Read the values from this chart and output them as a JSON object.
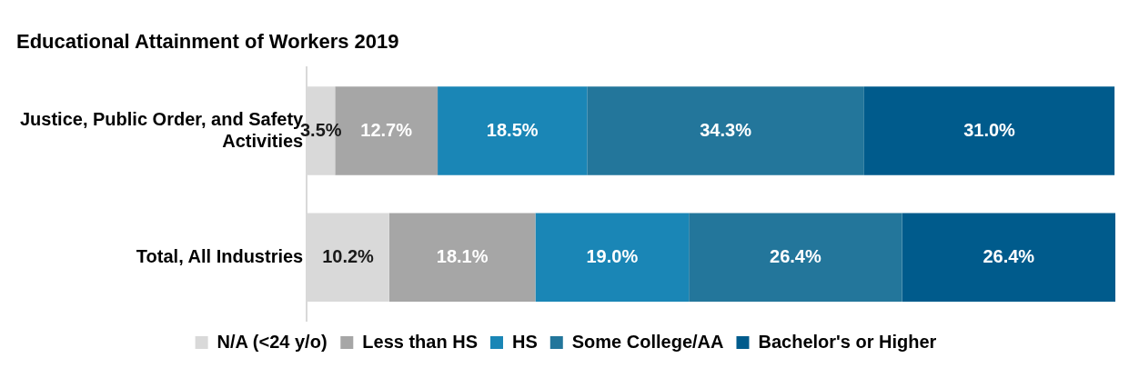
{
  "chart_data": {
    "type": "bar",
    "orientation": "horizontal",
    "stacked": true,
    "title": "Educational Attainment of Workers 2019",
    "categories": [
      "Justice, Public Order, and Safety Activities",
      "Total, All Industries"
    ],
    "series": [
      {
        "name": "N/A (<24 y/o)",
        "color": "#d9d9d9",
        "values": [
          3.5,
          10.2
        ],
        "value_labels": [
          "3.5%",
          "10.2%"
        ]
      },
      {
        "name": "Less than HS",
        "color": "#a6a6a6",
        "values": [
          12.7,
          18.1
        ],
        "value_labels": [
          "12.7%",
          "18.1%"
        ]
      },
      {
        "name": "HS",
        "color": "#1a86b6",
        "values": [
          18.5,
          19.0
        ],
        "value_labels": [
          "18.5%",
          "19.0%"
        ]
      },
      {
        "name": "Some College/AA",
        "color": "#23769b",
        "values": [
          34.3,
          26.4
        ],
        "value_labels": [
          "34.3%",
          "26.4%"
        ]
      },
      {
        "name": "Bachelor's or Higher",
        "color": "#005b8c",
        "values": [
          31.0,
          26.4
        ],
        "value_labels": [
          "31.0%",
          "26.4%"
        ]
      }
    ],
    "tick_labels": "y",
    "legend": "bottom",
    "grid": false
  }
}
